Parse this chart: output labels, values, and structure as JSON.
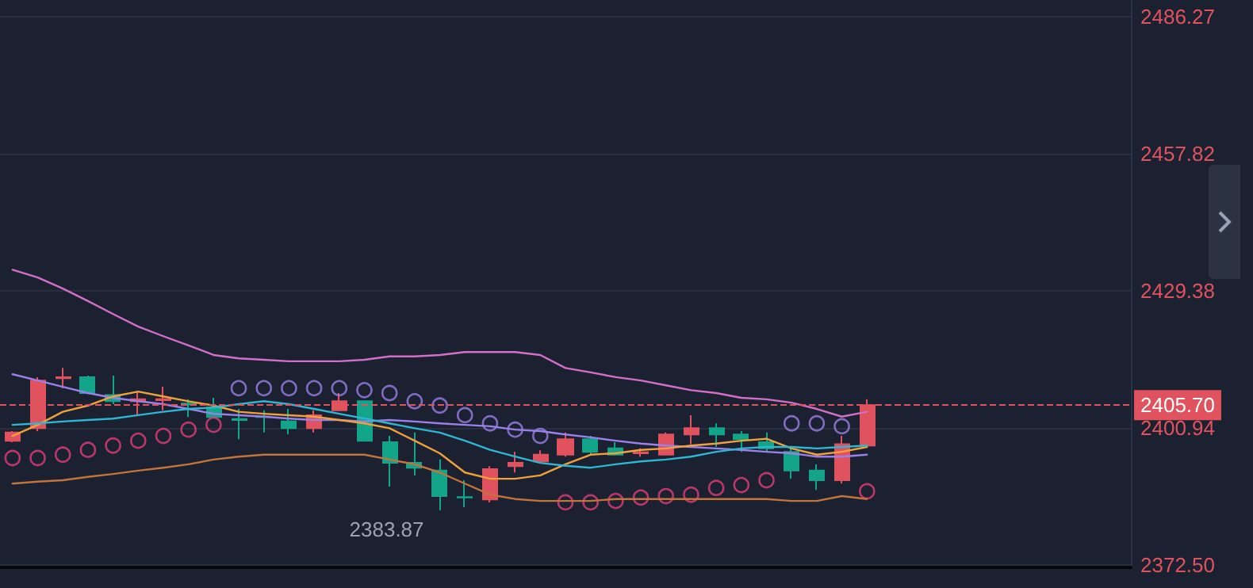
{
  "chart_data": {
    "type": "candlestick",
    "categories": [
      null,
      null,
      null,
      null,
      null,
      null,
      null,
      null,
      null,
      null,
      null,
      null,
      null,
      null,
      null,
      null,
      null,
      null,
      null,
      null,
      null,
      null,
      null,
      null,
      null,
      null,
      null,
      null,
      null,
      null,
      null,
      null,
      null,
      null,
      null,
      null,
      null,
      null,
      null,
      null,
      null,
      null,
      null,
      null,
      null
    ],
    "ohlc": [
      [
        2398.3,
        2400.3,
        2398.0,
        2400.0
      ],
      [
        2400.9,
        2411.5,
        2400.3,
        2410.8
      ],
      [
        2411.3,
        2413.4,
        2409.2,
        2411.5
      ],
      [
        2411.5,
        2411.8,
        2408.0,
        2408.2
      ],
      [
        2407.8,
        2411.8,
        2405.9,
        2406.5
      ],
      [
        2406.5,
        2408.5,
        2403.6,
        2406.9
      ],
      [
        2406.7,
        2409.5,
        2404.6,
        2406.9
      ],
      [
        2406.0,
        2406.9,
        2403.2,
        2405.8
      ],
      [
        2405.2,
        2407.2,
        2403.0,
        2403.2
      ],
      [
        2402.8,
        2404.9,
        2398.6,
        2402.6
      ],
      [
        2403.3,
        2404.6,
        2400.0,
        2403.2
      ],
      [
        2402.3,
        2404.9,
        2399.6,
        2400.9
      ],
      [
        2400.9,
        2404.6,
        2400.0,
        2403.6
      ],
      [
        2404.6,
        2408.2,
        2404.5,
        2406.5
      ],
      [
        2406.5,
        2406.7,
        2398.1,
        2398.3
      ],
      [
        2398.0,
        2399.3,
        2388.8,
        2393.7
      ],
      [
        2393.7,
        2400.0,
        2391.1,
        2392.7
      ],
      [
        2392.1,
        2394.4,
        2383.87,
        2386.8
      ],
      [
        2386.6,
        2390.1,
        2384.5,
        2386.5
      ],
      [
        2386.1,
        2393.0,
        2385.5,
        2392.4
      ],
      [
        2393.0,
        2396.0,
        2391.7,
        2393.7
      ],
      [
        2394.0,
        2396.3,
        2393.7,
        2395.4
      ],
      [
        2395.4,
        2400.0,
        2395.0,
        2398.6
      ],
      [
        2398.6,
        2399.3,
        2395.4,
        2396.0
      ],
      [
        2396.7,
        2398.0,
        2395.3,
        2395.4
      ],
      [
        2395.7,
        2396.7,
        2395.0,
        2395.9
      ],
      [
        2395.4,
        2400.0,
        2395.3,
        2399.6
      ],
      [
        2399.6,
        2403.6,
        2397.6,
        2400.9
      ],
      [
        2400.9,
        2401.9,
        2397.0,
        2399.6
      ],
      [
        2399.6,
        2400.3,
        2396.0,
        2398.6
      ],
      [
        2398.0,
        2400.0,
        2396.0,
        2396.7
      ],
      [
        2396.0,
        2396.7,
        2390.4,
        2392.1
      ],
      [
        2392.1,
        2393.4,
        2388.1,
        2390.1
      ],
      [
        2390.1,
        2399.3,
        2389.4,
        2397.6
      ],
      [
        2397.3,
        2406.9,
        2397.0,
        2405.7
      ],
      null,
      null,
      null,
      null,
      null,
      null,
      null,
      null,
      null,
      null
    ],
    "colors": [
      "#e0525e",
      "#e0525e",
      "#e0525e",
      "#12a58a",
      "#12a58a",
      "#e0525e",
      "#e0525e",
      "#12a58a",
      "#12a58a",
      "#12a58a",
      "#12a58a",
      "#12a58a",
      "#e0525e",
      "#e0525e",
      "#12a58a",
      "#12a58a",
      "#12a58a",
      "#12a58a",
      "#12a58a",
      "#e0525e",
      "#e0525e",
      "#e0525e",
      "#e0525e",
      "#12a58a",
      "#12a58a",
      "#e0525e",
      "#e0525e",
      "#e0525e",
      "#12a58a",
      "#12a58a",
      "#12a58a",
      "#12a58a",
      "#12a58a",
      "#e0525e",
      "#e0525e",
      null,
      null,
      null,
      null,
      null,
      null,
      null,
      null,
      null,
      null
    ],
    "series": [
      {
        "type": "line",
        "color": "#d46fc9",
        "values": [
          2433.8,
          2432.2,
          2429.9,
          2427.3,
          2424.6,
          2422.0,
          2420.0,
          2418.1,
          2416.1,
          2415.4,
          2415.1,
          2414.8,
          2414.8,
          2414.8,
          2415.1,
          2415.8,
          2415.8,
          2416.1,
          2416.7,
          2416.7,
          2416.7,
          2416.1,
          2413.4,
          2412.5,
          2411.5,
          2410.8,
          2409.8,
          2408.8,
          2408.2,
          2407.2,
          2406.9,
          2406.2,
          2404.9,
          2403.3,
          2404.3,
          null,
          null,
          null,
          null,
          null,
          null,
          null,
          null,
          null,
          null
        ]
      },
      {
        "type": "line",
        "color": "#9b80ea",
        "values": [
          2412.1,
          2410.8,
          2409.5,
          2408.2,
          2407.2,
          2406.5,
          2405.9,
          2404.9,
          2403.9,
          2403.6,
          2403.3,
          2402.9,
          2402.6,
          2402.6,
          2402.3,
          2402.6,
          2402.3,
          2401.9,
          2401.6,
          2401.3,
          2400.6,
          2400.3,
          2399.6,
          2399.0,
          2398.3,
          2397.7,
          2397.3,
          2397.0,
          2396.7,
          2396.4,
          2396.0,
          2395.7,
          2395.0,
          2395.0,
          2395.4,
          null,
          null,
          null,
          null,
          null,
          null,
          null,
          null,
          null,
          null
        ]
      },
      {
        "type": "line",
        "color": "#f0a23a",
        "values": [
          2399.3,
          2401.6,
          2404.3,
          2405.6,
          2407.5,
          2408.5,
          2407.5,
          2406.5,
          2405.6,
          2404.3,
          2403.9,
          2403.6,
          2403.3,
          2402.6,
          2401.9,
          2400.9,
          2398.3,
          2395.7,
          2391.7,
          2390.4,
          2390.4,
          2391.1,
          2393.4,
          2395.4,
          2395.7,
          2396.4,
          2396.7,
          2397.3,
          2397.7,
          2398.3,
          2398.7,
          2396.7,
          2395.4,
          2396.0,
          2397.0,
          null,
          null,
          null,
          null,
          null,
          null,
          null,
          null,
          null,
          null
        ]
      },
      {
        "type": "line",
        "color": "#2fb6d2",
        "values": [
          2401.6,
          2401.9,
          2402.3,
          2402.6,
          2402.9,
          2403.6,
          2404.3,
          2404.9,
          2405.2,
          2405.9,
          2406.5,
          2405.9,
          2404.9,
          2403.9,
          2402.9,
          2401.9,
          2400.9,
          2400.0,
          2398.3,
          2396.4,
          2395.0,
          2393.7,
          2393.1,
          2392.7,
          2393.4,
          2394.0,
          2394.4,
          2395.0,
          2396.0,
          2396.7,
          2397.0,
          2397.0,
          2396.7,
          2397.0,
          2397.3,
          null,
          null,
          null,
          null,
          null,
          null,
          null,
          null,
          null,
          null
        ]
      },
      {
        "type": "line",
        "color": "#c2743a",
        "values": [
          2389.4,
          2389.8,
          2390.1,
          2390.8,
          2391.4,
          2392.1,
          2392.7,
          2393.4,
          2394.4,
          2395.0,
          2395.4,
          2395.4,
          2395.4,
          2395.4,
          2395.4,
          2394.4,
          2393.4,
          2391.7,
          2389.4,
          2387.1,
          2386.2,
          2385.8,
          2385.8,
          2385.8,
          2386.2,
          2386.2,
          2386.2,
          2386.2,
          2386.2,
          2386.2,
          2386.2,
          2385.8,
          2385.8,
          2386.8,
          2386.2,
          null,
          null,
          null,
          null,
          null,
          null,
          null,
          null,
          null,
          null
        ]
      },
      {
        "type": "scatter",
        "color": "#9b80ea",
        "marker": "circle",
        "values": [
          null,
          null,
          null,
          null,
          null,
          null,
          null,
          null,
          null,
          2409.2,
          2409.2,
          2409.2,
          2409.2,
          2409.2,
          2408.8,
          2408.2,
          2406.5,
          2405.6,
          2403.6,
          2401.9,
          2400.6,
          2399.3,
          null,
          null,
          null,
          null,
          null,
          null,
          null,
          null,
          null,
          2401.9,
          2401.9,
          2401.3,
          null,
          null,
          null,
          null,
          null,
          null,
          null,
          null,
          null,
          null,
          null
        ]
      },
      {
        "type": "scatter",
        "color": "#e23d7c",
        "marker": "circle",
        "values": [
          2394.7,
          2394.7,
          2395.4,
          2396.4,
          2397.3,
          2398.3,
          2399.3,
          2400.6,
          2401.6,
          null,
          null,
          null,
          null,
          null,
          null,
          null,
          null,
          null,
          null,
          null,
          null,
          null,
          2385.5,
          2385.5,
          2385.8,
          2386.5,
          2386.8,
          2387.1,
          2388.5,
          2389.1,
          2390.1,
          null,
          null,
          null,
          2387.8,
          null,
          null,
          null,
          null,
          null,
          null,
          null,
          null,
          null,
          null
        ]
      }
    ],
    "ylim": [
      2372.0,
      2489.8
    ],
    "yticks": [
      {
        "value": 2372.5,
        "label": "2372.50"
      },
      2400.94,
      2429.38,
      2457.82,
      2486.27
    ],
    "grid": "y",
    "ref_lines": [
      {
        "axis": "y",
        "value": 2405.7,
        "label": "2405.70",
        "color": "#e0525e",
        "line_style": "dashed"
      }
    ],
    "annotations": [
      "2383.87"
    ]
  }
}
